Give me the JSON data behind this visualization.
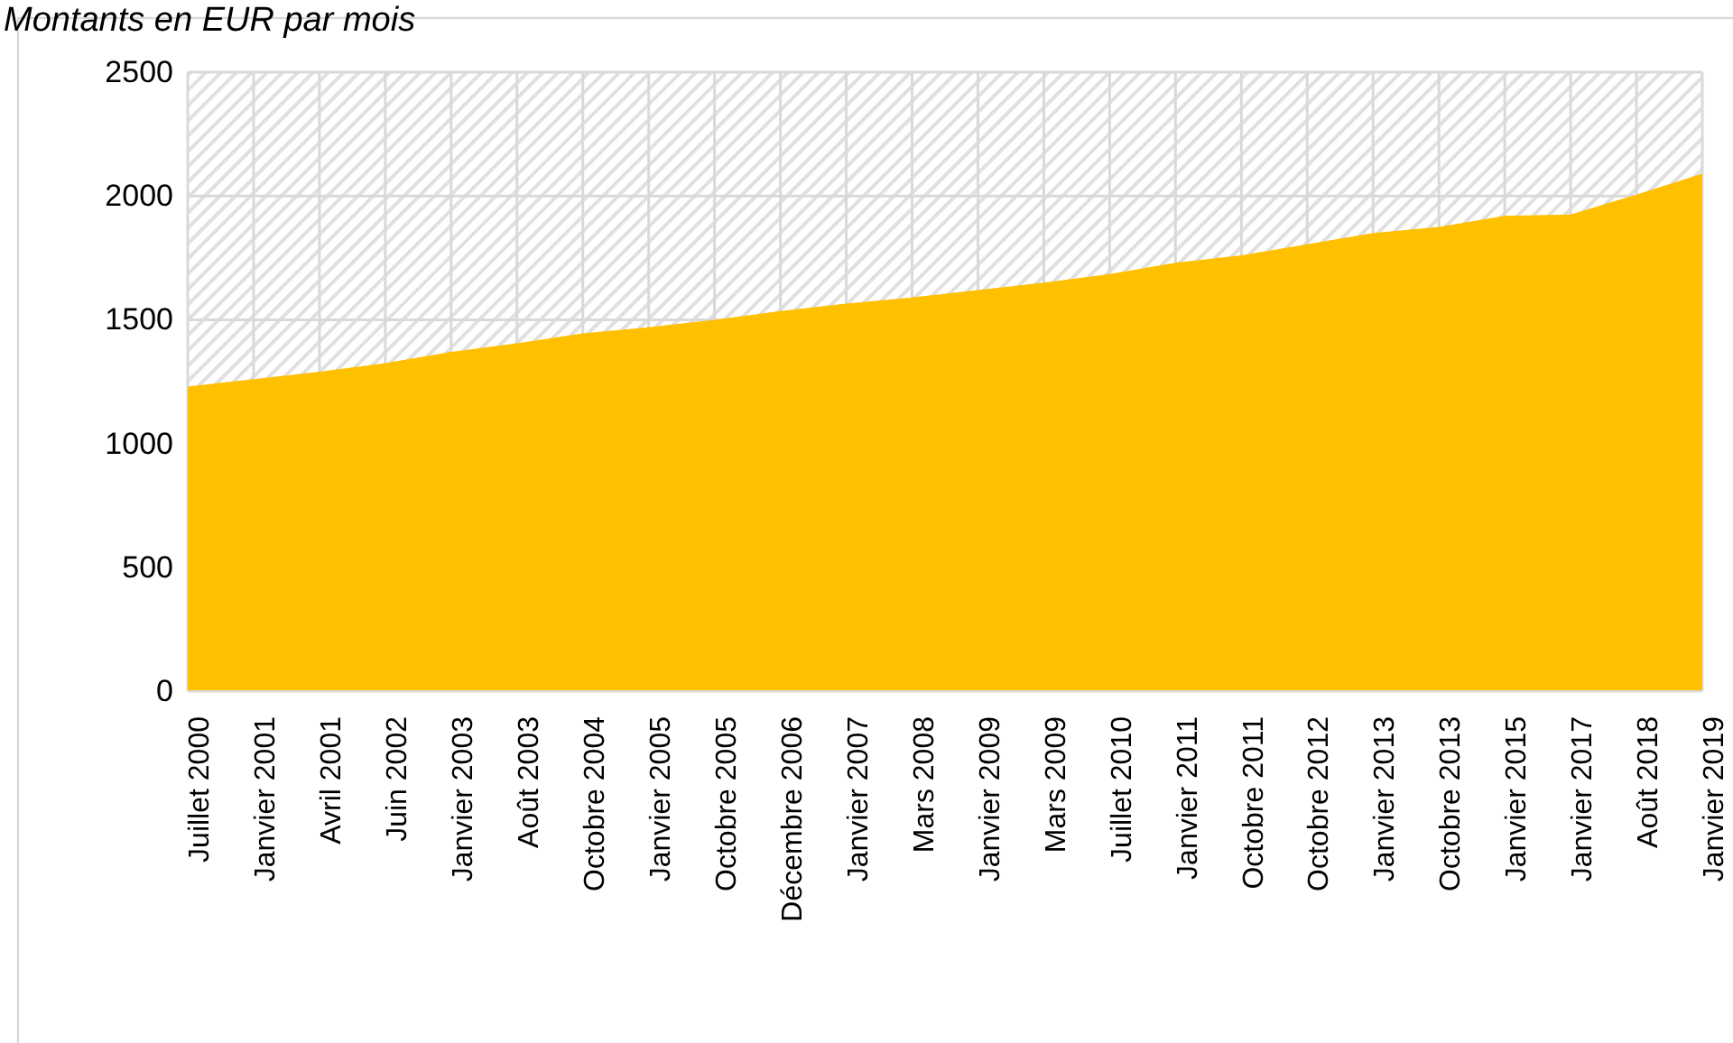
{
  "chart_data": {
    "type": "area",
    "title": "Montants en EUR par mois",
    "categories": [
      "Juillet 2000",
      "Janvier 2001",
      "Avril 2001",
      "Juin 2002",
      "Janvier 2003",
      "Août 2003",
      "Octobre 2004",
      "Janvier 2005",
      "Octobre 2005",
      "Décembre 2006",
      "Janvier 2007",
      "Mars 2008",
      "Janvier 2009",
      "Mars 2009",
      "Juillet 2010",
      "Janvier 2011",
      "Octobre 2011",
      "Octobre 2012",
      "Janvier 2013",
      "Octobre 2013",
      "Janvier 2015",
      "Janvier 2017",
      "Août 2018",
      "Janvier 2019"
    ],
    "series": [
      {
        "color": "#ffc000",
        "values": [
          1230,
          1260,
          1290,
          1325,
          1370,
          1405,
          1445,
          1470,
          1500,
          1535,
          1565,
          1590,
          1620,
          1650,
          1685,
          1730,
          1760,
          1805,
          1850,
          1875,
          1920,
          1925,
          2005,
          2090
        ]
      }
    ],
    "ylim": [
      0,
      2500
    ],
    "yticks": [
      0,
      500,
      1000,
      1500,
      2000,
      2500
    ],
    "grid": true,
    "legend": false
  }
}
